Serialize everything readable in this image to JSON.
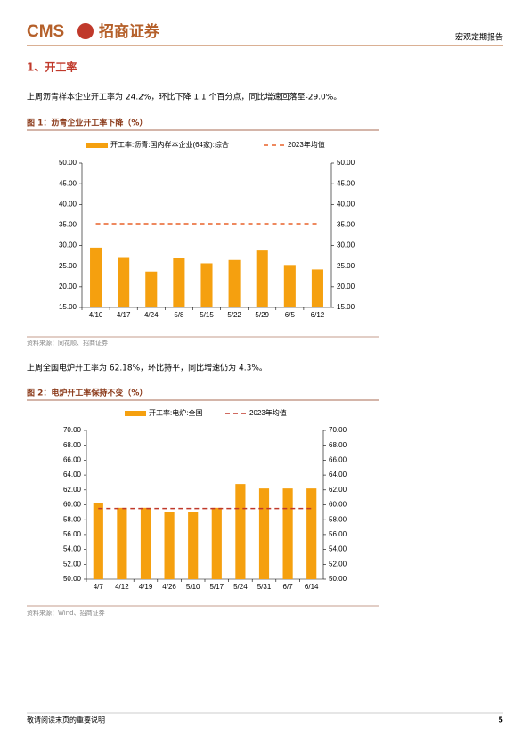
{
  "header": {
    "logo": "CMS",
    "company": "招商证券",
    "report_type": "宏观定期报告"
  },
  "section_title": "1、开工率",
  "paragraphs": [
    "上周沥青样本企业开工率为 24.2%，环比下降 1.1 个百分点，同比增速回落至-29.0%。",
    "上周全国电炉开工率为 62.18%，环比持平，同比增速仍为 4.3%。"
  ],
  "chart_data": [
    {
      "type": "bar",
      "title": "图 1：沥青企业开工率下降（%）",
      "source": "资料来源：同花顺、招商证券",
      "categories": [
        "4/10",
        "4/17",
        "4/24",
        "5/8",
        "5/15",
        "5/22",
        "5/29",
        "6/5",
        "6/12"
      ],
      "series": [
        {
          "name": "开工率:沥青:国内样本企业(64家):综合",
          "type": "bar",
          "color": "#f5a00f",
          "values": [
            29.5,
            27.2,
            23.7,
            27.0,
            25.7,
            26.5,
            28.8,
            25.3,
            24.2
          ]
        },
        {
          "name": "2023年均值",
          "type": "line",
          "dashed": true,
          "color": "#e8622a",
          "values": [
            35.3,
            35.3,
            35.3,
            35.3,
            35.3,
            35.3,
            35.3,
            35.3,
            35.3
          ]
        }
      ],
      "ylim": [
        15,
        50
      ],
      "yticks": [
        {
          "value": 15,
          "label": "15.00"
        },
        {
          "value": 20,
          "label": "20.00"
        },
        {
          "value": 25,
          "label": "25.00"
        },
        {
          "value": 30,
          "label": "30.00"
        },
        {
          "value": 35,
          "label": "35.00"
        },
        {
          "value": 40,
          "label": "40.00"
        },
        {
          "value": 45,
          "label": "45.00"
        },
        {
          "value": 50,
          "label": "50.00"
        }
      ],
      "mirror_axis": true
    },
    {
      "type": "bar",
      "title": "图 2：电炉开工率保持不变（%）",
      "source": "资料来源：Wind、招商证券",
      "categories": [
        "4/7",
        "4/12",
        "4/19",
        "4/26",
        "5/10",
        "5/17",
        "5/24",
        "5/31",
        "6/7",
        "6/14"
      ],
      "series": [
        {
          "name": "开工率:电炉:全国",
          "type": "bar",
          "color": "#f5a00f",
          "values": [
            60.3,
            59.6,
            59.6,
            59.0,
            59.0,
            59.6,
            62.8,
            62.2,
            62.2,
            62.2
          ]
        },
        {
          "name": "2023年均值",
          "type": "line",
          "dashed": true,
          "color": "#c0392b",
          "values": [
            59.5,
            59.5,
            59.5,
            59.5,
            59.5,
            59.5,
            59.5,
            59.5,
            59.5,
            59.5
          ]
        }
      ],
      "ylim": [
        50,
        70
      ],
      "yticks": [
        {
          "value": 50,
          "label": "50.00"
        },
        {
          "value": 52,
          "label": "52.00"
        },
        {
          "value": 54,
          "label": "54.00"
        },
        {
          "value": 56,
          "label": "56.00"
        },
        {
          "value": 58,
          "label": "58.00"
        },
        {
          "value": 60,
          "label": "60.00"
        },
        {
          "value": 62,
          "label": "62.00"
        },
        {
          "value": 64,
          "label": "64.00"
        },
        {
          "value": 66,
          "label": "66.00"
        },
        {
          "value": 68,
          "label": "68.00"
        },
        {
          "value": 70,
          "label": "70.00"
        }
      ],
      "mirror_axis": true
    }
  ],
  "footer": {
    "note": "敬请阅读末页的重要说明",
    "page": "5"
  }
}
